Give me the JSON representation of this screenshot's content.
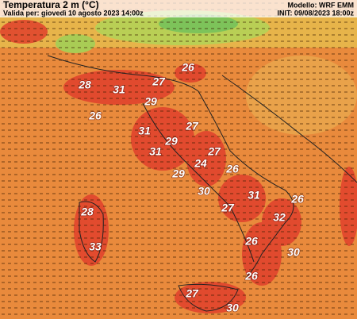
{
  "header": {
    "title": "Temperatura 2 m (°C)",
    "valid": "Valida per: giovedì 10 agosto 2023 14:00z",
    "model": "Modello: WRF EMM",
    "init": "INIT: 09/08/2023 18:00z"
  },
  "labels": [
    26,
    27,
    28,
    31,
    29,
    26,
    31,
    27,
    29,
    31,
    27,
    24,
    26,
    29,
    30,
    31,
    26,
    27,
    32,
    28,
    26,
    33,
    30,
    26,
    27,
    30
  ]
}
